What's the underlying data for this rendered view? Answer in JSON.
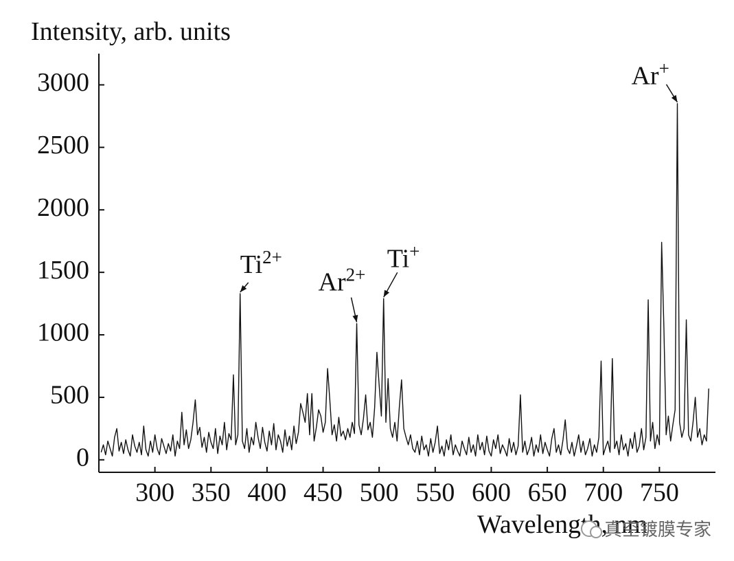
{
  "chart_data": {
    "type": "line",
    "title": "Intensity, arb. units",
    "x_label": "Wavelength, nm",
    "watermark": "真空镀膜专家",
    "xlim": [
      250,
      800
    ],
    "xticks": [
      300,
      350,
      400,
      450,
      500,
      550,
      600,
      650,
      700,
      750
    ],
    "ylim": [
      -100,
      3250
    ],
    "yticks": [
      0,
      500,
      1000,
      1500,
      2000,
      2500,
      3000
    ],
    "grid": false,
    "annotations": [
      {
        "text": "Ti",
        "sup": "2+",
        "x": 376,
        "y": 1330
      },
      {
        "text": "Ar",
        "sup": "2+",
        "x": 480,
        "y": 1090
      },
      {
        "text": "Ti",
        "sup": "+",
        "x": 504,
        "y": 1290
      },
      {
        "text": "Ar",
        "sup": "+",
        "x": 766,
        "y": 2850
      }
    ],
    "x": [
      252,
      254,
      256,
      258,
      260,
      262,
      264,
      266,
      268,
      270,
      272,
      274,
      276,
      278,
      280,
      282,
      284,
      286,
      288,
      290,
      292,
      294,
      296,
      298,
      300,
      302,
      304,
      306,
      308,
      310,
      312,
      314,
      316,
      318,
      320,
      322,
      324,
      326,
      328,
      330,
      332,
      334,
      336,
      338,
      340,
      342,
      344,
      346,
      348,
      350,
      352,
      354,
      356,
      358,
      360,
      362,
      364,
      366,
      368,
      370,
      372,
      374,
      376,
      378,
      380,
      382,
      384,
      386,
      388,
      390,
      392,
      394,
      396,
      398,
      400,
      402,
      404,
      406,
      408,
      410,
      412,
      414,
      416,
      418,
      420,
      422,
      424,
      426,
      428,
      430,
      432,
      434,
      436,
      438,
      440,
      442,
      444,
      446,
      448,
      450,
      452,
      454,
      456,
      458,
      460,
      462,
      464,
      466,
      468,
      470,
      472,
      474,
      476,
      478,
      480,
      482,
      484,
      486,
      488,
      490,
      492,
      494,
      496,
      498,
      500,
      502,
      504,
      506,
      508,
      510,
      512,
      514,
      516,
      518,
      520,
      522,
      524,
      526,
      528,
      530,
      532,
      534,
      536,
      538,
      540,
      542,
      544,
      546,
      548,
      550,
      552,
      554,
      556,
      558,
      560,
      562,
      564,
      566,
      568,
      570,
      572,
      574,
      576,
      578,
      580,
      582,
      584,
      586,
      588,
      590,
      592,
      594,
      596,
      598,
      600,
      602,
      604,
      606,
      608,
      610,
      612,
      614,
      616,
      618,
      620,
      622,
      624,
      626,
      628,
      630,
      632,
      634,
      636,
      638,
      640,
      642,
      644,
      646,
      648,
      650,
      652,
      654,
      656,
      658,
      660,
      662,
      664,
      666,
      668,
      670,
      672,
      674,
      676,
      678,
      680,
      682,
      684,
      686,
      688,
      690,
      692,
      694,
      696,
      698,
      700,
      702,
      704,
      706,
      708,
      710,
      712,
      714,
      716,
      718,
      720,
      722,
      724,
      726,
      728,
      730,
      732,
      734,
      736,
      738,
      740,
      742,
      744,
      746,
      748,
      750,
      752,
      754,
      756,
      758,
      760,
      762,
      764,
      766,
      768,
      770,
      772,
      774,
      776,
      778,
      780,
      782,
      784,
      786,
      788,
      790,
      792,
      794
    ],
    "series": [
      {
        "name": "Intensity",
        "color": "#111111",
        "values": [
          60,
          120,
          40,
          150,
          90,
          30,
          180,
          250,
          70,
          140,
          50,
          160,
          80,
          30,
          200,
          110,
          60,
          140,
          40,
          270,
          80,
          30,
          150,
          60,
          200,
          90,
          40,
          170,
          110,
          50,
          130,
          70,
          200,
          30,
          150,
          90,
          380,
          120,
          240,
          90,
          160,
          300,
          480,
          200,
          260,
          100,
          180,
          60,
          220,
          140,
          90,
          250,
          50,
          190,
          120,
          300,
          80,
          210,
          160,
          680,
          120,
          200,
          1330,
          150,
          90,
          250,
          60,
          180,
          120,
          300,
          180,
          90,
          260,
          140,
          70,
          230,
          120,
          290,
          80,
          200,
          150,
          60,
          240,
          110,
          190,
          80,
          270,
          130,
          220,
          450,
          380,
          300,
          530,
          200,
          530,
          150,
          260,
          400,
          350,
          220,
          300,
          730,
          480,
          200,
          280,
          150,
          340,
          190,
          230,
          160,
          250,
          180,
          300,
          210,
          1090,
          280,
          200,
          330,
          520,
          240,
          300,
          180,
          420,
          860,
          600,
          350,
          1290,
          300,
          650,
          250,
          180,
          300,
          150,
          420,
          640,
          250,
          180,
          120,
          200,
          90,
          60,
          150,
          40,
          190,
          80,
          120,
          30,
          170,
          60,
          140,
          270,
          50,
          110,
          30,
          160,
          80,
          200,
          40,
          120,
          70,
          30,
          150,
          90,
          40,
          180,
          60,
          120,
          30,
          200,
          80,
          140,
          40,
          190,
          70,
          30,
          160,
          90,
          200,
          50,
          120,
          80,
          30,
          170,
          60,
          140,
          40,
          110,
          520,
          60,
          150,
          40,
          90,
          180,
          30,
          120,
          60,
          200,
          50,
          140,
          80,
          30,
          170,
          250,
          60,
          120,
          40,
          160,
          320,
          90,
          50,
          140,
          30,
          110,
          200,
          60,
          150,
          40,
          90,
          170,
          30,
          120,
          60,
          180,
          790,
          40,
          100,
          150,
          60,
          810,
          90,
          150,
          40,
          200,
          80,
          130,
          30,
          170,
          90,
          220,
          60,
          110,
          250,
          80,
          180,
          1280,
          150,
          300,
          90,
          200,
          120,
          1740,
          1060,
          200,
          350,
          150,
          280,
          400,
          2850,
          300,
          180,
          250,
          1120,
          200,
          150,
          300,
          500,
          180,
          250,
          120,
          200,
          150,
          570
        ]
      }
    ]
  }
}
